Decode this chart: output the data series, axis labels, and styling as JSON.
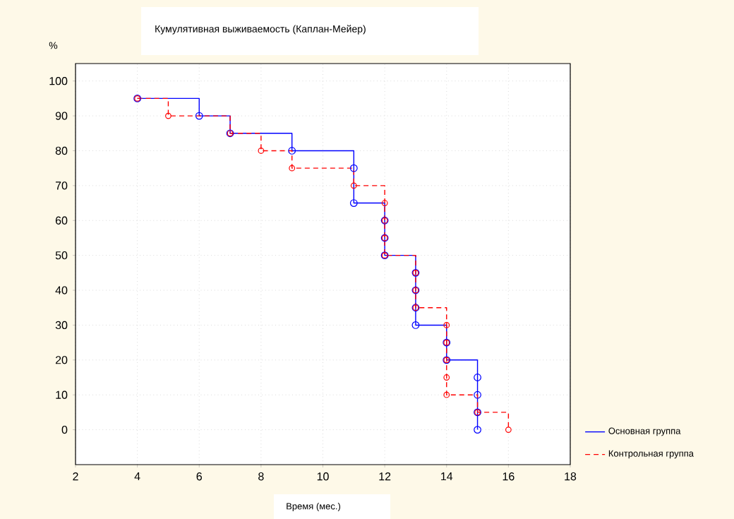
{
  "chart_data": {
    "type": "step",
    "title": "Кумулятивная выживаемость (Каплан-Мейер)",
    "xlabel": "Время (мес.)",
    "ylabel": "%",
    "series": [
      {
        "name": "Основная группа",
        "color": "#0000ff",
        "line_style": "solid",
        "x": [
          4,
          6,
          7,
          9,
          11,
          11,
          12,
          12,
          12,
          13,
          13,
          13,
          13,
          14,
          14,
          15,
          15,
          15,
          15
        ],
        "values": [
          95,
          90,
          85,
          80,
          75,
          65,
          60,
          55,
          50,
          45,
          40,
          35,
          30,
          25,
          20,
          15,
          10,
          5,
          0
        ]
      },
      {
        "name": "Контрольная группа",
        "color": "#ff0000",
        "line_style": "dashed",
        "x": [
          4,
          5,
          7,
          8,
          9,
          11,
          12,
          12,
          12,
          12,
          13,
          13,
          13,
          14,
          14,
          14,
          14,
          14,
          15,
          16
        ],
        "values": [
          95,
          90,
          85,
          80,
          75,
          70,
          65,
          60,
          55,
          50,
          45,
          40,
          35,
          30,
          25,
          20,
          15,
          10,
          5,
          0
        ]
      }
    ],
    "xlim": [
      2,
      18
    ],
    "ylim": [
      -10,
      105
    ],
    "xticks": [
      2,
      4,
      6,
      8,
      10,
      12,
      14,
      16,
      18
    ],
    "yticks": [
      0,
      10,
      20,
      30,
      40,
      50,
      60,
      70,
      80,
      90,
      100
    ],
    "grid": true,
    "legend": "bottom right",
    "marker": "circle"
  }
}
